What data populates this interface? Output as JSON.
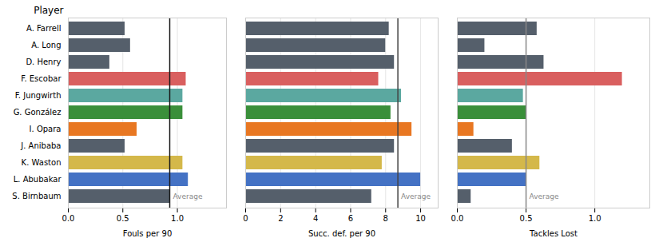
{
  "chart_data": [
    {
      "type": "bar",
      "orientation": "horizontal",
      "title": "Player",
      "x_label": "Fouls per 90",
      "categories": [
        "A. Farrell",
        "A. Long",
        "D. Henry",
        "F. Escobar",
        "F. Jungwirth",
        "G. González",
        "I. Opara",
        "J. Anibaba",
        "K. Waston",
        "L. Abubakar",
        "S. Birnbaum"
      ],
      "values": [
        0.52,
        0.57,
        0.38,
        1.08,
        1.05,
        1.05,
        0.63,
        0.52,
        1.05,
        1.1,
        0.93
      ],
      "colors": [
        "#555f6b",
        "#555f6b",
        "#555f6b",
        "#d95f5f",
        "#5ba8a0",
        "#3a8f3a",
        "#e87722",
        "#555f6b",
        "#d4b84a",
        "#4472c4",
        "#555f6b"
      ],
      "xlim": [
        0.0,
        1.45
      ],
      "xticks": [
        {
          "value": 0.0,
          "label": "0.0"
        },
        0.5,
        {
          "value": 1.0,
          "label": "1.0"
        }
      ],
      "grid": true,
      "reference_line": {
        "value": 0.93,
        "label": "Average",
        "color": "#1a1a1a"
      }
    },
    {
      "type": "bar",
      "orientation": "horizontal",
      "x_label": "Succ. def. per 90",
      "categories": [
        "A. Farrell",
        "A. Long",
        "D. Henry",
        "F. Escobar",
        "F. Jungwirth",
        "G. González",
        "I. Opara",
        "J. Anibaba",
        "K. Waston",
        "L. Abubakar",
        "S. Birnbaum"
      ],
      "values": [
        8.2,
        8.0,
        8.5,
        7.6,
        8.9,
        8.3,
        9.5,
        8.5,
        7.8,
        10.0,
        7.2
      ],
      "colors": [
        "#555f6b",
        "#555f6b",
        "#555f6b",
        "#d95f5f",
        "#5ba8a0",
        "#3a8f3a",
        "#e87722",
        "#555f6b",
        "#d4b84a",
        "#4472c4",
        "#555f6b"
      ],
      "xlim": [
        0,
        11
      ],
      "xticks": [
        0,
        2,
        4,
        6,
        8,
        10
      ],
      "grid": true,
      "tick_labels": "x",
      "reference_line": {
        "value": 8.7,
        "label": "Average",
        "color": "#444444"
      }
    },
    {
      "type": "bar",
      "orientation": "horizontal",
      "x_label": "Tackles Lost",
      "categories": [
        "A. Farrell",
        "A. Long",
        "D. Henry",
        "F. Escobar",
        "F. Jungwirth",
        "G. González",
        "I. Opara",
        "J. Anibaba",
        "K. Waston",
        "L. Abubakar",
        "S. Birnbaum"
      ],
      "values": [
        0.58,
        0.2,
        0.63,
        1.2,
        0.48,
        0.5,
        0.12,
        0.4,
        0.6,
        0.5,
        0.1
      ],
      "colors": [
        "#555f6b",
        "#555f6b",
        "#555f6b",
        "#d95f5f",
        "#5ba8a0",
        "#3a8f3a",
        "#e87722",
        "#555f6b",
        "#d4b84a",
        "#4472c4",
        "#555f6b"
      ],
      "xlim": [
        0.0,
        1.4
      ],
      "xticks": [
        {
          "value": 0.0,
          "label": "0.0"
        },
        0.5,
        {
          "value": 1.0,
          "label": "1.0"
        }
      ],
      "grid": true,
      "tick_labels": "x",
      "reference_line": {
        "value": 0.5,
        "label": "Average",
        "color": "#888888"
      }
    }
  ]
}
